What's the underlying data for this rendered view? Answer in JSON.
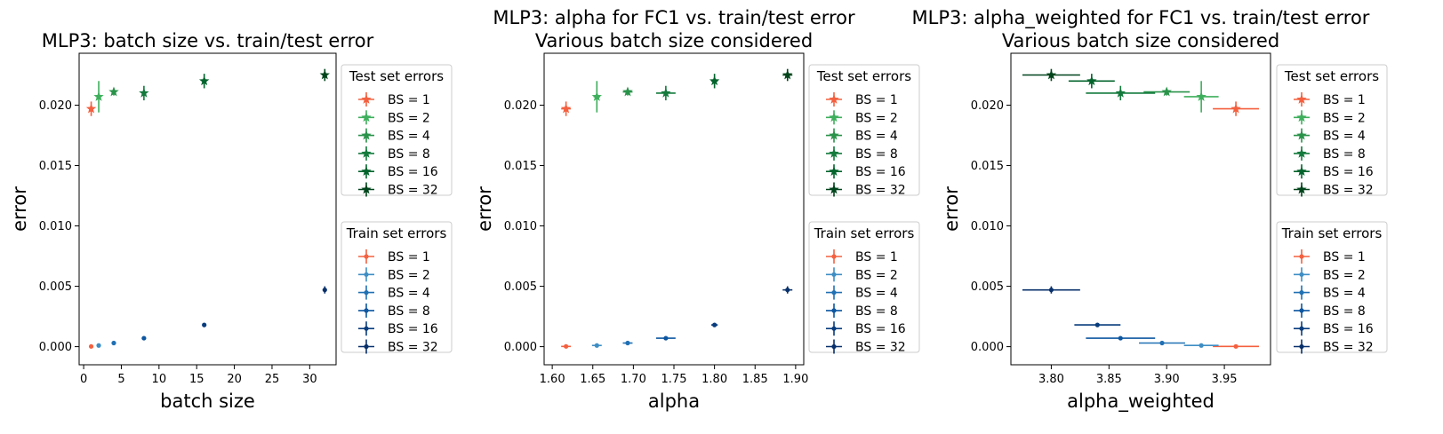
{
  "colors": {
    "test": [
      "#f4603f",
      "#3eaf5c",
      "#2a934a",
      "#137a3c",
      "#03642c",
      "#00441b"
    ],
    "train": [
      "#f4603f",
      "#3e8ec4",
      "#2070b4",
      "#0d56a0",
      "#083c7d",
      "#08306b"
    ]
  },
  "chart_data": [
    {
      "type": "scatter",
      "title": "MLP3: batch size vs. train/test error",
      "title2": "",
      "xlabel": "batch size",
      "ylabel": "error",
      "xlim": [
        -0.6,
        33.5
      ],
      "ylim": [
        -0.0015,
        0.0243
      ],
      "xticks": [
        0,
        5,
        10,
        15,
        20,
        25,
        30
      ],
      "xticklabels": [
        "0",
        "5",
        "10",
        "15",
        "20",
        "25",
        "30"
      ],
      "yticks": [
        0.0,
        0.005,
        0.01,
        0.015,
        0.02
      ],
      "yticklabels": [
        "0.000",
        "0.005",
        "0.010",
        "0.015",
        "0.020"
      ],
      "legend_test_title": "Test set errors",
      "legend_train_title": "Train set errors",
      "legend_labels": [
        "BS = 1",
        "BS = 2",
        "BS = 4",
        "BS = 8",
        "BS = 16",
        "BS = 32"
      ],
      "test": [
        {
          "x": 1,
          "y": 0.0197,
          "xerr": 0,
          "yerr": 0.0006
        },
        {
          "x": 2,
          "y": 0.0207,
          "xerr": 0,
          "yerr": 0.0013
        },
        {
          "x": 4,
          "y": 0.0211,
          "xerr": 0,
          "yerr": 0.0003
        },
        {
          "x": 8,
          "y": 0.021,
          "xerr": 0,
          "yerr": 0.0006
        },
        {
          "x": 16,
          "y": 0.022,
          "xerr": 0,
          "yerr": 0.0006
        },
        {
          "x": 32,
          "y": 0.0225,
          "xerr": 0,
          "yerr": 0.0005
        }
      ],
      "train": [
        {
          "x": 1,
          "y": 2e-05,
          "xerr": 0,
          "yerr": 5e-05
        },
        {
          "x": 2,
          "y": 0.0001,
          "xerr": 0,
          "yerr": 8e-05
        },
        {
          "x": 4,
          "y": 0.0003,
          "xerr": 0,
          "yerr": 0.0001
        },
        {
          "x": 8,
          "y": 0.0007,
          "xerr": 0,
          "yerr": 0.0001
        },
        {
          "x": 16,
          "y": 0.0018,
          "xerr": 0,
          "yerr": 0.0001
        },
        {
          "x": 32,
          "y": 0.0047,
          "xerr": 0,
          "yerr": 0.0003
        }
      ]
    },
    {
      "type": "scatter",
      "title": "MLP3: alpha for FC1 vs. train/test error",
      "title2": "Various batch size considered",
      "xlabel": "alpha",
      "ylabel": "error",
      "xlim": [
        1.59,
        1.91
      ],
      "ylim": [
        -0.0015,
        0.0243
      ],
      "xticks": [
        1.6,
        1.65,
        1.7,
        1.75,
        1.8,
        1.85,
        1.9
      ],
      "xticklabels": [
        "1.60",
        "1.65",
        "1.70",
        "1.75",
        "1.80",
        "1.85",
        "1.90"
      ],
      "yticks": [
        0.0,
        0.005,
        0.01,
        0.015,
        0.02
      ],
      "yticklabels": [
        "0.000",
        "0.005",
        "0.010",
        "0.015",
        "0.020"
      ],
      "legend_test_title": "Test set errors",
      "legend_train_title": "Train set errors",
      "legend_labels": [
        "BS = 1",
        "BS = 2",
        "BS = 4",
        "BS = 8",
        "BS = 16",
        "BS = 32"
      ],
      "test": [
        {
          "x": 1.617,
          "y": 0.0197,
          "xerr": 0.006,
          "yerr": 0.0006
        },
        {
          "x": 1.655,
          "y": 0.0207,
          "xerr": 0.004,
          "yerr": 0.0013
        },
        {
          "x": 1.693,
          "y": 0.0211,
          "xerr": 0.006,
          "yerr": 0.0003
        },
        {
          "x": 1.74,
          "y": 0.021,
          "xerr": 0.012,
          "yerr": 0.0006
        },
        {
          "x": 1.8,
          "y": 0.022,
          "xerr": 0.004,
          "yerr": 0.0006
        },
        {
          "x": 1.89,
          "y": 0.0225,
          "xerr": 0.006,
          "yerr": 0.0005
        }
      ],
      "train": [
        {
          "x": 1.617,
          "y": 2e-05,
          "xerr": 0.006,
          "yerr": 5e-05
        },
        {
          "x": 1.655,
          "y": 0.0001,
          "xerr": 0.006,
          "yerr": 8e-05
        },
        {
          "x": 1.693,
          "y": 0.0003,
          "xerr": 0.006,
          "yerr": 0.0001
        },
        {
          "x": 1.74,
          "y": 0.0007,
          "xerr": 0.012,
          "yerr": 0.0001
        },
        {
          "x": 1.8,
          "y": 0.0018,
          "xerr": 0.004,
          "yerr": 0.0001
        },
        {
          "x": 1.89,
          "y": 0.0047,
          "xerr": 0.006,
          "yerr": 0.0003
        }
      ]
    },
    {
      "type": "scatter",
      "title": "MLP3: alpha_weighted for FC1 vs. train/test error",
      "title2": "Various batch size considered",
      "xlabel": "alpha_weighted",
      "ylabel": "error",
      "xlim": [
        3.765,
        3.99
      ],
      "ylim": [
        -0.0015,
        0.0243
      ],
      "xticks": [
        3.8,
        3.85,
        3.9,
        3.95
      ],
      "xticklabels": [
        "3.80",
        "3.85",
        "3.90",
        "3.95"
      ],
      "yticks": [
        0.0,
        0.005,
        0.01,
        0.015,
        0.02
      ],
      "yticklabels": [
        "0.000",
        "0.005",
        "0.010",
        "0.015",
        "0.020"
      ],
      "legend_test_title": "Test set errors",
      "legend_train_title": "Train set errors",
      "legend_labels": [
        "BS = 1",
        "BS = 2",
        "BS = 4",
        "BS = 8",
        "BS = 16",
        "BS = 32"
      ],
      "test": [
        {
          "x": 3.96,
          "y": 0.0197,
          "xerr": 0.02,
          "yerr": 0.0006
        },
        {
          "x": 3.93,
          "y": 0.0207,
          "xerr": 0.015,
          "yerr": 0.0013
        },
        {
          "x": 3.9,
          "y": 0.0211,
          "xerr": 0.02,
          "yerr": 0.0003
        },
        {
          "x": 3.86,
          "y": 0.021,
          "xerr": 0.03,
          "yerr": 0.0006
        },
        {
          "x": 3.835,
          "y": 0.022,
          "xerr": 0.02,
          "yerr": 0.0006
        },
        {
          "x": 3.8,
          "y": 0.0225,
          "xerr": 0.025,
          "yerr": 0.0005
        }
      ],
      "train": [
        {
          "x": 3.96,
          "y": 2e-05,
          "xerr": 0.02,
          "yerr": 5e-05
        },
        {
          "x": 3.93,
          "y": 0.0001,
          "xerr": 0.015,
          "yerr": 8e-05
        },
        {
          "x": 3.896,
          "y": 0.0003,
          "xerr": 0.02,
          "yerr": 0.0001
        },
        {
          "x": 3.86,
          "y": 0.0007,
          "xerr": 0.03,
          "yerr": 0.0001
        },
        {
          "x": 3.84,
          "y": 0.0018,
          "xerr": 0.02,
          "yerr": 0.0001
        },
        {
          "x": 3.8,
          "y": 0.0047,
          "xerr": 0.025,
          "yerr": 0.0003
        }
      ]
    }
  ]
}
